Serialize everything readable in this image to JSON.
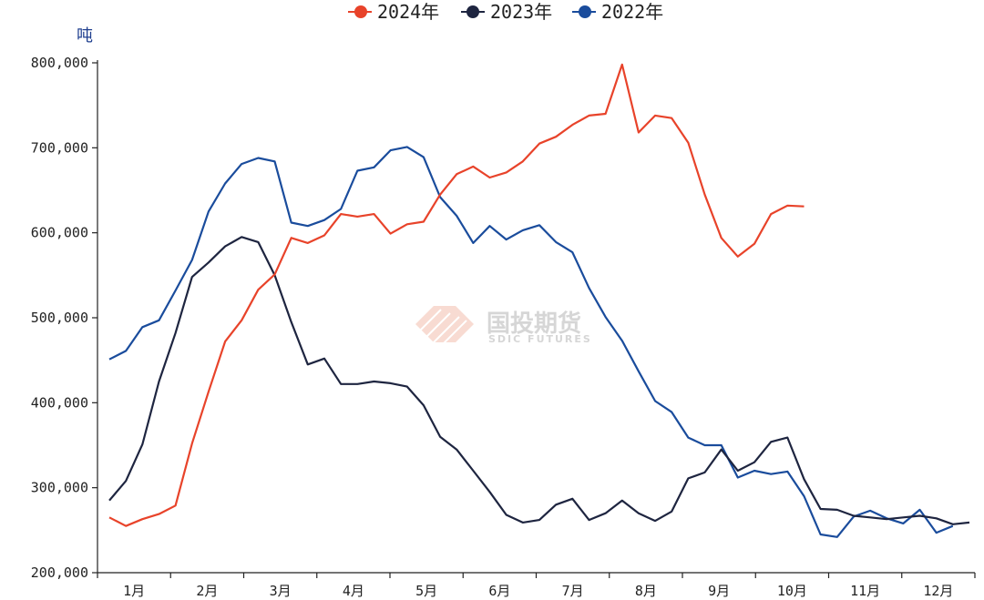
{
  "chart_data": {
    "type": "line",
    "unit_label": "吨",
    "ylim": [
      200000,
      800000
    ],
    "y_ticks": [
      {
        "value": 200000,
        "label": "200,000"
      },
      {
        "value": 300000,
        "label": "300,000"
      },
      {
        "value": 400000,
        "label": "400,000"
      },
      {
        "value": 500000,
        "label": "500,000"
      },
      {
        "value": 600000,
        "label": "600,000"
      },
      {
        "value": 700000,
        "label": "700,000"
      },
      {
        "value": 800000,
        "label": "800,000"
      }
    ],
    "months": [
      "1月",
      "2月",
      "3月",
      "4月",
      "5月",
      "6月",
      "7月",
      "8月",
      "9月",
      "10月",
      "11月",
      "12月"
    ],
    "week_count": 53,
    "grid": false,
    "legend_position": "top-center",
    "series": [
      {
        "name": "2024年",
        "color": "#e8432a",
        "values": [
          265000,
          255000,
          263000,
          269000,
          279000,
          352000,
          413000,
          472000,
          497000,
          533000,
          551000,
          594000,
          588000,
          597000,
          622000,
          619000,
          622000,
          599000,
          610000,
          613000,
          645000,
          669000,
          678000,
          665000,
          671000,
          684000,
          705000,
          713000,
          727000,
          738000,
          740000,
          798000,
          718000,
          738000,
          735000,
          706000,
          645000,
          594000,
          572000,
          587000,
          622000,
          632000,
          631000
        ]
      },
      {
        "name": "2023年",
        "color": "#1e2540",
        "values": [
          285000,
          308000,
          351000,
          425000,
          482000,
          548000,
          565000,
          584000,
          595000,
          589000,
          550000,
          495000,
          445000,
          452000,
          422000,
          422000,
          425000,
          423000,
          419000,
          397000,
          360000,
          345000,
          320000,
          295000,
          268000,
          259000,
          262000,
          280000,
          287000,
          262000,
          270000,
          285000,
          270000,
          261000,
          272000,
          311000,
          318000,
          345000,
          320000,
          330000,
          354000,
          359000,
          310000,
          275000,
          274000,
          267000,
          265000,
          263000,
          265000,
          267000,
          264000,
          257000,
          259000
        ]
      },
      {
        "name": "2022年",
        "color": "#1a4c9c",
        "values": [
          451000,
          461000,
          489000,
          497000,
          532000,
          568000,
          625000,
          658000,
          681000,
          688000,
          684000,
          612000,
          608000,
          615000,
          628000,
          673000,
          677000,
          697000,
          701000,
          689000,
          642000,
          620000,
          588000,
          608000,
          592000,
          603000,
          609000,
          589000,
          577000,
          535000,
          501000,
          473000,
          437000,
          402000,
          389000,
          359000,
          350000,
          350000,
          312000,
          320000,
          316000,
          319000,
          290000,
          245000,
          242000,
          266000,
          273000,
          264000,
          258000,
          274000,
          247000,
          255000
        ]
      }
    ]
  },
  "watermark": {
    "name_cn": "国投期货",
    "name_en": "SDIC FUTURES",
    "color": "#f2b8a8"
  }
}
